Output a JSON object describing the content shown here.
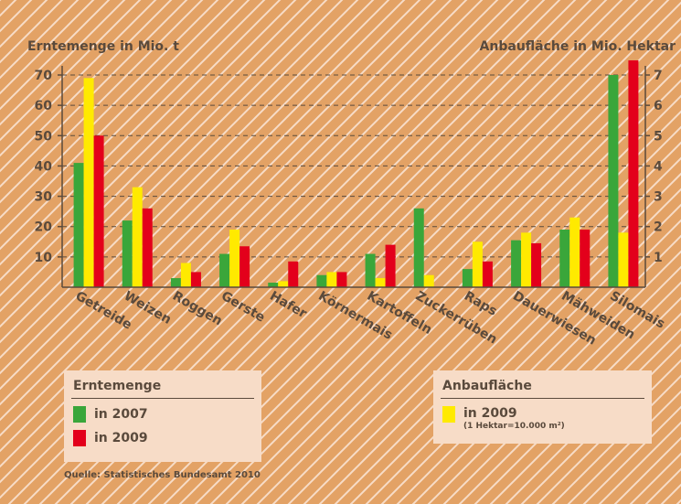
{
  "chart_data": {
    "type": "bar",
    "left_axis_title": "Erntemenge in Mio. t",
    "right_axis_title": "Anbaufläche in Mio. Hektar",
    "categories": [
      "Getreide",
      "Weizen",
      "Roggen",
      "Gerste",
      "Hafer",
      "Körnermais",
      "Kartoffeln",
      "Zuckerrüben",
      "Raps",
      "Dauerwiesen",
      "Mähweiden",
      "Silomais"
    ],
    "left_ylim": [
      0,
      70
    ],
    "left_ticks": [
      "10",
      "20",
      "30",
      "40",
      "50",
      "60",
      "70"
    ],
    "right_ylim": [
      0,
      7
    ],
    "right_ticks": [
      "1",
      "2",
      "3",
      "4",
      "5",
      "6",
      "7"
    ],
    "grid": true,
    "series": [
      {
        "name": "in 2007",
        "axis": "left",
        "color": "#3aa63a",
        "values": [
          41,
          22,
          3,
          11,
          1.5,
          4,
          11,
          26,
          6,
          15.5,
          19,
          70
        ]
      },
      {
        "name": "in 2009",
        "axis": "right",
        "color": "#ffea00",
        "values": [
          6.9,
          3.3,
          0.8,
          1.9,
          0.2,
          0.5,
          0.3,
          0.4,
          1.5,
          1.8,
          2.3,
          1.8
        ]
      },
      {
        "name": "in 2009",
        "axis": "left",
        "color": "#e3001b",
        "values": [
          50,
          26,
          5,
          13.5,
          8.5,
          5,
          14,
          0,
          8.5,
          14.5,
          19,
          75
        ]
      }
    ]
  },
  "legend_harvest": {
    "title": "Erntemenge",
    "items": [
      {
        "label": "in 2007",
        "color": "#3aa63a"
      },
      {
        "label": "in 2009",
        "color": "#e3001b"
      }
    ]
  },
  "legend_area": {
    "title": "Anbaufläche",
    "items": [
      {
        "label": "in 2009",
        "color": "#ffea00",
        "note": "(1 Hektar=10.000 m²)"
      }
    ]
  },
  "source": "Quelle: Statistisches Bundesamt 2010",
  "colors": {
    "background": "#e3a265",
    "hatch": "#f7dcc7",
    "panel": "#f7dcc7",
    "text": "#5a4a3c"
  }
}
